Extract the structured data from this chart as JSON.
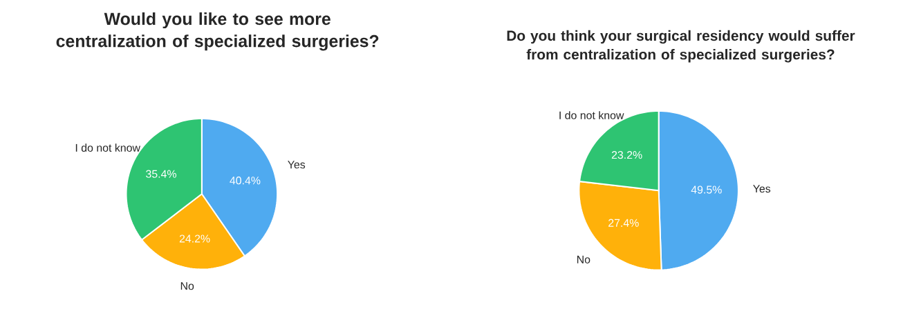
{
  "chart_data": [
    {
      "type": "pie",
      "title": "Would you like to see more centralization of specialized surgeries?",
      "categories": [
        "Yes",
        "No",
        "I do not know"
      ],
      "values": [
        40.4,
        24.2,
        35.4
      ],
      "value_labels": [
        "40.4%",
        "24.2%",
        "35.4%"
      ],
      "colors": [
        "#4faaf0",
        "#ffb10a",
        "#2ec472"
      ]
    },
    {
      "type": "pie",
      "title": "Do you think your surgical residency would suffer from centralization of specialized surgeries?",
      "categories": [
        "Yes",
        "No",
        "I do not know"
      ],
      "values": [
        49.5,
        27.4,
        23.2
      ],
      "value_labels": [
        "49.5%",
        "27.4%",
        "23.2%"
      ],
      "colors": [
        "#4faaf0",
        "#ffb10a",
        "#2ec472"
      ]
    }
  ]
}
